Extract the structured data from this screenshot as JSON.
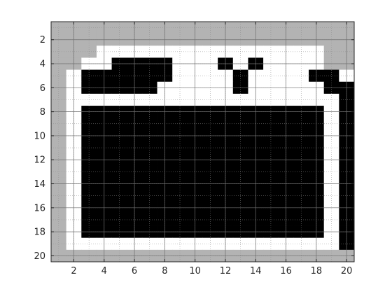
{
  "chart_data": {
    "type": "heatmap",
    "title": "",
    "xlabel": "",
    "ylabel": "",
    "xlim": [
      0.5,
      20.5
    ],
    "ylim": [
      0.5,
      20.5
    ],
    "y_axis_direction": "reversed",
    "grid": true,
    "x_ticks": [
      2,
      4,
      6,
      8,
      10,
      12,
      14,
      16,
      18,
      20
    ],
    "y_ticks": [
      2,
      4,
      6,
      8,
      10,
      12,
      14,
      16,
      18,
      20
    ],
    "x_tick_labels": [
      "2",
      "4",
      "6",
      "8",
      "10",
      "12",
      "14",
      "16",
      "18",
      "20"
    ],
    "y_tick_labels": [
      "2",
      "4",
      "6",
      "8",
      "10",
      "12",
      "14",
      "16",
      "18",
      "20"
    ],
    "legend": {
      "0": "black",
      "1": "white",
      "2": "gray",
      "3": "dark gray"
    },
    "colors": {
      "0": "#000000",
      "1": "#ffffff",
      "2": "#b3b3b3",
      "3": "#666666"
    },
    "values": [
      "22222222222222222222",
      "22222222222222222222",
      "22211111111111111122",
      "22110000111010111122",
      "21000000111101111001",
      "21000001111101111100",
      "21111111111111111110",
      "21000000000000000010",
      "21000000000000000010",
      "21000000000000000010",
      "21000000000000000010",
      "21000000000000000010",
      "21000000000000000010",
      "21000000000000000010",
      "21000000000000000010",
      "21000000000000000010",
      "21000000000000000010",
      "21000000000000000010",
      "21111111111111111110",
      "22222222222222222222"
    ]
  }
}
